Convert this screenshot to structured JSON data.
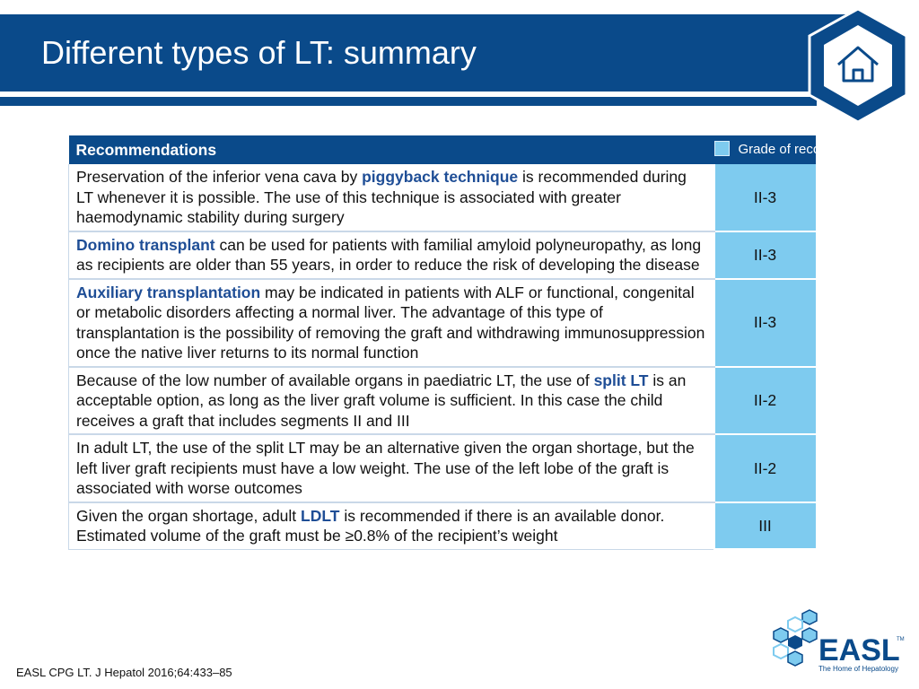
{
  "slide": {
    "title": "Different types of LT: summary"
  },
  "table": {
    "header_recommendations": "Recommendations",
    "header_grade": "Grade of recommendation",
    "rows": [
      {
        "parts": [
          {
            "t": "Preservation of the inferior vena cava by ",
            "b": false
          },
          {
            "t": "piggyback technique",
            "b": true
          },
          {
            "t": " is recommended during LT whenever it is possible. The use of this technique is associated with greater haemodynamic stability during surgery",
            "b": false
          }
        ],
        "grade": "II-3"
      },
      {
        "parts": [
          {
            "t": "Domino transplant",
            "b": true
          },
          {
            "t": " can be used for patients with familial amyloid polyneuropathy, as long as recipients are older than 55 years, in order to reduce the risk of developing the disease",
            "b": false
          }
        ],
        "grade": "II-3"
      },
      {
        "parts": [
          {
            "t": "Auxiliary transplantation",
            "b": true
          },
          {
            "t": " may be indicated in patients with ALF or functional, congenital or metabolic disorders affecting a normal liver. The advantage of this type of transplantation is the possibility of removing the graft and withdrawing immunosuppression once the native liver returns to its normal function",
            "b": false
          }
        ],
        "grade": "II-3"
      },
      {
        "parts": [
          {
            "t": "Because of the low number of available organs in paediatric LT, the use of ",
            "b": false
          },
          {
            "t": "split LT",
            "b": true
          },
          {
            "t": " is an acceptable option, as long as the liver graft volume is sufficient. In this case the child receives a graft that includes segments II and III",
            "b": false
          }
        ],
        "grade": "II-2"
      },
      {
        "parts": [
          {
            "t": "In adult LT, the use of the split LT may be an alternative given the organ shortage, but the left liver graft recipients must have a low weight. The use of the left lobe of the graft is associated with worse outcomes",
            "b": false
          }
        ],
        "grade": "II-2"
      },
      {
        "parts": [
          {
            "t": "Given the organ shortage, adult ",
            "b": false
          },
          {
            "t": "LDLT",
            "b": true
          },
          {
            "t": " is recommended if there is an available donor. Estimated volume of the graft must be ≥0.8% of the recipient’s weight",
            "b": false
          }
        ],
        "grade": "III"
      }
    ]
  },
  "footer": {
    "citation": "EASL CPG LT. J Hepatol 2016;64:433–85",
    "logo_text": "EASL",
    "logo_tm": "TM",
    "logo_tagline": "The Home of Hepatology"
  },
  "colors": {
    "brand_blue": "#0a4a8a",
    "grade_cell": "#7ecbef",
    "highlight_text": "#1f4e96"
  },
  "icons": {
    "home": "home-icon",
    "logo_mark": "hexagon-cluster-icon"
  }
}
